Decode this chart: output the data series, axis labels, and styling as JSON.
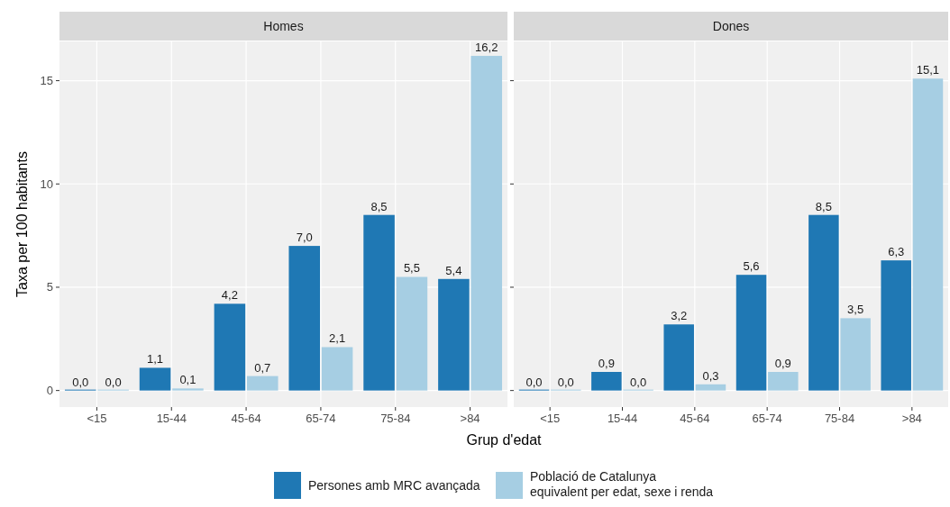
{
  "chart_data": [
    {
      "type": "bar",
      "title": "Homes",
      "ylabel": "Taxa per 100 habitants",
      "xlabel": "Grup d'edat",
      "categories": [
        "<15",
        "15-44",
        "45-64",
        "65-74",
        "75-84",
        ">84"
      ],
      "series": [
        {
          "name": "Persones amb MRC avançada",
          "color": "#1f78b4",
          "values": [
            0.0,
            1.1,
            4.2,
            7.0,
            8.5,
            5.4
          ],
          "value_labels": [
            "0,0",
            "1,1",
            "4,2",
            "7,0",
            "8,5",
            "5,4"
          ]
        },
        {
          "name": "Població de Catalunya\nequivalent per edat, sexe i renda",
          "color": "#a6cee3",
          "values": [
            0.0,
            0.1,
            0.7,
            2.1,
            5.5,
            16.2
          ],
          "value_labels": [
            "0,0",
            "0,1",
            "0,7",
            "2,1",
            "5,5",
            "16,2"
          ]
        }
      ],
      "ylim": [
        -0.8,
        16.9
      ],
      "yticks": [
        0,
        5,
        10,
        15
      ],
      "grid": true,
      "legend": "bottom"
    },
    {
      "type": "bar",
      "title": "Dones",
      "categories": [
        "<15",
        "15-44",
        "45-64",
        "65-74",
        "75-84",
        ">84"
      ],
      "series": [
        {
          "color": "#1f78b4",
          "values": [
            0.0,
            0.9,
            3.2,
            5.6,
            8.5,
            6.3
          ],
          "value_labels": [
            "0,0",
            "0,9",
            "3,2",
            "5,6",
            "8,5",
            "6,3"
          ]
        },
        {
          "color": "#a6cee3",
          "values": [
            0.0,
            0.0,
            0.3,
            0.9,
            3.5,
            15.1
          ],
          "value_labels": [
            "0,0",
            "0,0",
            "0,3",
            "0,9",
            "3,5",
            "15,1"
          ]
        }
      ],
      "ylim": [
        -0.8,
        16.9
      ],
      "yticks": [
        0,
        5,
        10,
        15
      ],
      "grid": true,
      "tick_labels": "x"
    }
  ]
}
